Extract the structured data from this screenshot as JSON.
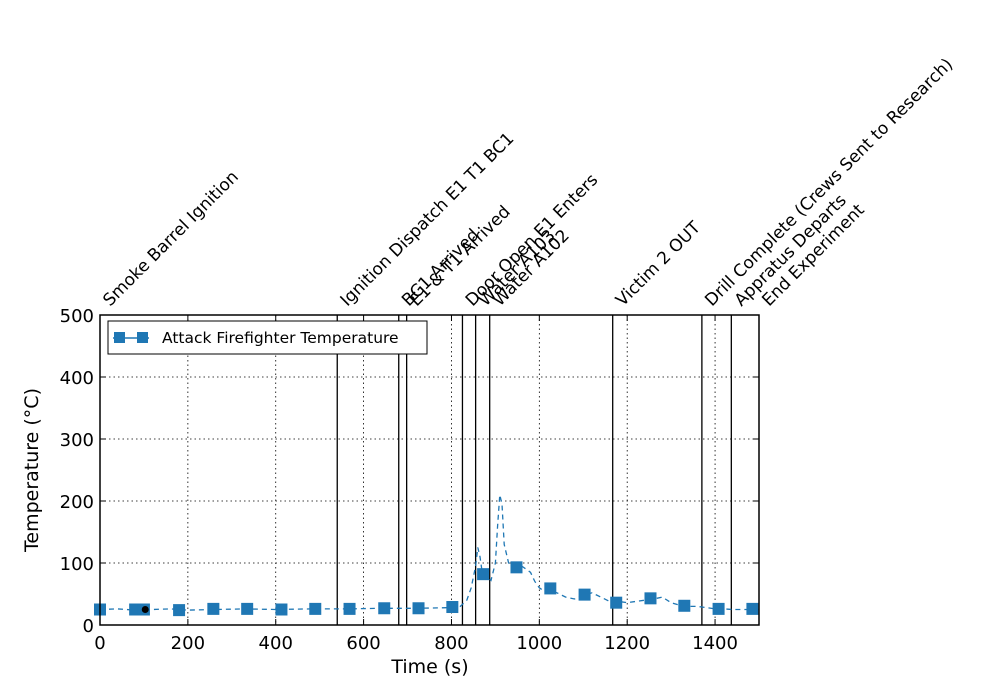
{
  "chart_data": {
    "type": "line",
    "title": "",
    "xlabel": "Time (s)",
    "ylabel": "Temperature (°C)",
    "xlim": [
      0,
      1500
    ],
    "ylim": [
      0,
      500
    ],
    "xticks": [
      0,
      200,
      400,
      600,
      800,
      1000,
      1200,
      1400
    ],
    "yticks": [
      0,
      100,
      200,
      300,
      400,
      500
    ],
    "grid": true,
    "legend_position": "upper-left",
    "series": [
      {
        "name": "Attack Firefighter Temperature",
        "color": "#1f77b4",
        "line_style": "dashed",
        "marker": "square",
        "x": [
          0,
          40,
          80,
          120,
          160,
          200,
          260,
          330,
          400,
          480,
          560,
          640,
          720,
          800,
          820,
          835,
          845,
          855,
          860,
          865,
          870,
          880,
          890,
          900,
          905,
          910,
          915,
          920,
          930,
          940,
          950,
          960,
          970,
          980,
          990,
          1000,
          1010,
          1020,
          1030,
          1040,
          1060,
          1080,
          1100,
          1120,
          1140,
          1160,
          1180,
          1200,
          1220,
          1240,
          1260,
          1280,
          1300,
          1320,
          1340,
          1360,
          1380,
          1400,
          1420,
          1440,
          1460,
          1480,
          1500
        ],
        "y": [
          25,
          26,
          24,
          25,
          26,
          24,
          25,
          26,
          25,
          26,
          26,
          27,
          27,
          28,
          30,
          40,
          60,
          95,
          125,
          110,
          85,
          78,
          72,
          100,
          160,
          210,
          195,
          130,
          100,
          98,
          100,
          95,
          90,
          85,
          70,
          60,
          55,
          53,
          55,
          52,
          45,
          42,
          48,
          52,
          45,
          38,
          38,
          36,
          38,
          40,
          42,
          45,
          36,
          32,
          30,
          30,
          28,
          26,
          26,
          25,
          25,
          25,
          25
        ],
        "marker_x": [
          0,
          80,
          100,
          180,
          258,
          335,
          413,
          490,
          568,
          647,
          725,
          802,
          872,
          948,
          1025,
          1103,
          1175,
          1253,
          1330,
          1408,
          1485
        ],
        "marker_y": [
          25,
          25,
          25,
          24,
          26,
          26,
          25,
          26,
          26,
          27,
          27,
          29,
          82,
          93,
          59,
          49,
          36,
          43,
          31,
          26,
          26
        ]
      }
    ],
    "extra_point": {
      "x": 103,
      "y": 25,
      "color": "#000000"
    },
    "events": [
      {
        "time": 0,
        "label": "Smoke Barrel Ignition"
      },
      {
        "time": 540,
        "label": "Ignition Dispatch E1 T1 BC1"
      },
      {
        "time": 680,
        "label": "BC1 Arrived"
      },
      {
        "time": 698,
        "label": "E1 & T1 Arrived"
      },
      {
        "time": 825,
        "label": "Door Open E1 Enters"
      },
      {
        "time": 855,
        "label": "Water A103"
      },
      {
        "time": 887,
        "label": "Water A102"
      },
      {
        "time": 1167,
        "label": "Victim 2 OUT"
      },
      {
        "time": 1370,
        "label": "Drill Complete (Crews Sent to Research)"
      },
      {
        "time": 1437,
        "label": "Appratus Departs"
      },
      {
        "time": 1500,
        "label": "End Experiment"
      }
    ]
  }
}
